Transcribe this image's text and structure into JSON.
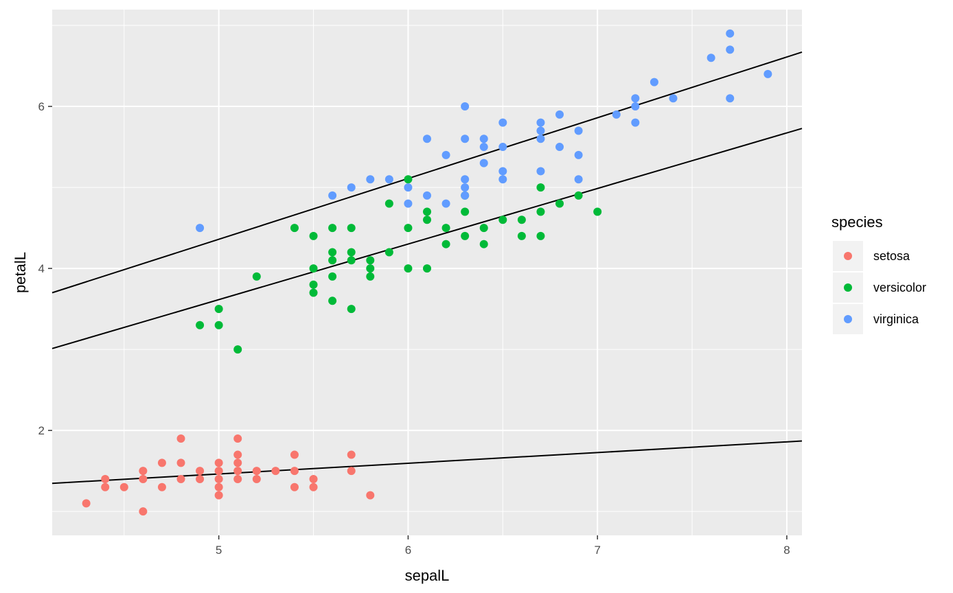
{
  "chart_data": {
    "type": "scatter",
    "xlabel": "sepalL",
    "ylabel": "petalL",
    "xlim": [
      4.12,
      8.08
    ],
    "ylim": [
      0.705,
      7.195
    ],
    "x_ticks": [
      5,
      6,
      7,
      8
    ],
    "x_tick_labels": [
      "5",
      "6",
      "7",
      "8"
    ],
    "y_ticks": [
      2,
      4,
      6
    ],
    "y_tick_labels": [
      "2",
      "4",
      "6"
    ],
    "grid": true,
    "legend": {
      "title": "species",
      "position": "right",
      "entries": [
        "setosa",
        "versicolor",
        "virginica"
      ]
    },
    "series": [
      {
        "name": "setosa",
        "color": "#F8766D",
        "points": [
          [
            4.3,
            1.1
          ],
          [
            4.4,
            1.3
          ],
          [
            4.4,
            1.4
          ],
          [
            4.5,
            1.3
          ],
          [
            4.6,
            1.0
          ],
          [
            4.6,
            1.4
          ],
          [
            4.6,
            1.5
          ],
          [
            4.7,
            1.3
          ],
          [
            4.7,
            1.6
          ],
          [
            4.8,
            1.4
          ],
          [
            4.8,
            1.6
          ],
          [
            4.8,
            1.9
          ],
          [
            4.9,
            1.4
          ],
          [
            4.9,
            1.5
          ],
          [
            5.0,
            1.2
          ],
          [
            5.0,
            1.3
          ],
          [
            5.0,
            1.4
          ],
          [
            5.0,
            1.5
          ],
          [
            5.0,
            1.6
          ],
          [
            5.1,
            1.4
          ],
          [
            5.1,
            1.5
          ],
          [
            5.1,
            1.6
          ],
          [
            5.1,
            1.7
          ],
          [
            5.1,
            1.9
          ],
          [
            5.2,
            1.4
          ],
          [
            5.2,
            1.5
          ],
          [
            5.3,
            1.5
          ],
          [
            5.4,
            1.3
          ],
          [
            5.4,
            1.5
          ],
          [
            5.4,
            1.7
          ],
          [
            5.5,
            1.3
          ],
          [
            5.5,
            1.4
          ],
          [
            5.7,
            1.5
          ],
          [
            5.7,
            1.7
          ],
          [
            5.8,
            1.2
          ]
        ]
      },
      {
        "name": "versicolor",
        "color": "#00BA38",
        "points": [
          [
            4.9,
            3.3
          ],
          [
            5.0,
            3.3
          ],
          [
            5.0,
            3.5
          ],
          [
            5.1,
            3.0
          ],
          [
            5.2,
            3.9
          ],
          [
            5.4,
            4.5
          ],
          [
            5.5,
            3.7
          ],
          [
            5.5,
            3.8
          ],
          [
            5.5,
            4.0
          ],
          [
            5.5,
            4.4
          ],
          [
            5.6,
            3.6
          ],
          [
            5.6,
            3.9
          ],
          [
            5.6,
            4.1
          ],
          [
            5.6,
            4.2
          ],
          [
            5.6,
            4.5
          ],
          [
            5.7,
            3.5
          ],
          [
            5.7,
            4.1
          ],
          [
            5.7,
            4.2
          ],
          [
            5.7,
            4.5
          ],
          [
            5.8,
            3.9
          ],
          [
            5.8,
            4.0
          ],
          [
            5.8,
            4.1
          ],
          [
            5.9,
            4.2
          ],
          [
            5.9,
            4.8
          ],
          [
            6.0,
            4.0
          ],
          [
            6.0,
            4.5
          ],
          [
            6.0,
            5.1
          ],
          [
            6.1,
            4.0
          ],
          [
            6.1,
            4.6
          ],
          [
            6.1,
            4.7
          ],
          [
            6.2,
            4.3
          ],
          [
            6.2,
            4.5
          ],
          [
            6.3,
            4.4
          ],
          [
            6.3,
            4.7
          ],
          [
            6.3,
            4.9
          ],
          [
            6.4,
            4.3
          ],
          [
            6.4,
            4.5
          ],
          [
            6.5,
            4.6
          ],
          [
            6.6,
            4.4
          ],
          [
            6.6,
            4.6
          ],
          [
            6.7,
            4.4
          ],
          [
            6.7,
            4.7
          ],
          [
            6.7,
            5.0
          ],
          [
            6.8,
            4.8
          ],
          [
            6.9,
            4.9
          ],
          [
            7.0,
            4.7
          ]
        ]
      },
      {
        "name": "virginica",
        "color": "#619CFF",
        "points": [
          [
            4.9,
            4.5
          ],
          [
            5.6,
            4.9
          ],
          [
            5.7,
            5.0
          ],
          [
            5.8,
            5.1
          ],
          [
            5.9,
            5.1
          ],
          [
            6.0,
            4.8
          ],
          [
            6.0,
            5.0
          ],
          [
            6.1,
            4.9
          ],
          [
            6.1,
            5.6
          ],
          [
            6.2,
            4.8
          ],
          [
            6.2,
            5.4
          ],
          [
            6.3,
            4.9
          ],
          [
            6.3,
            5.0
          ],
          [
            6.3,
            5.1
          ],
          [
            6.3,
            5.6
          ],
          [
            6.3,
            6.0
          ],
          [
            6.4,
            5.3
          ],
          [
            6.4,
            5.5
          ],
          [
            6.4,
            5.6
          ],
          [
            6.5,
            5.1
          ],
          [
            6.5,
            5.2
          ],
          [
            6.5,
            5.5
          ],
          [
            6.5,
            5.8
          ],
          [
            6.7,
            5.2
          ],
          [
            6.7,
            5.6
          ],
          [
            6.7,
            5.7
          ],
          [
            6.7,
            5.8
          ],
          [
            6.8,
            5.5
          ],
          [
            6.8,
            5.9
          ],
          [
            6.9,
            5.1
          ],
          [
            6.9,
            5.4
          ],
          [
            6.9,
            5.7
          ],
          [
            7.1,
            5.9
          ],
          [
            7.2,
            5.8
          ],
          [
            7.2,
            6.0
          ],
          [
            7.2,
            6.1
          ],
          [
            7.3,
            6.3
          ],
          [
            7.4,
            6.1
          ],
          [
            7.6,
            6.6
          ],
          [
            7.7,
            6.1
          ],
          [
            7.7,
            6.7
          ],
          [
            7.7,
            6.9
          ],
          [
            7.9,
            6.4
          ]
        ]
      }
    ],
    "fit_lines": [
      {
        "name": "setosa",
        "slope": 0.132,
        "intercept": 0.803
      },
      {
        "name": "versicolor",
        "slope": 0.686,
        "intercept": 0.185
      },
      {
        "name": "virginica",
        "slope": 0.75,
        "intercept": 0.61
      }
    ]
  }
}
